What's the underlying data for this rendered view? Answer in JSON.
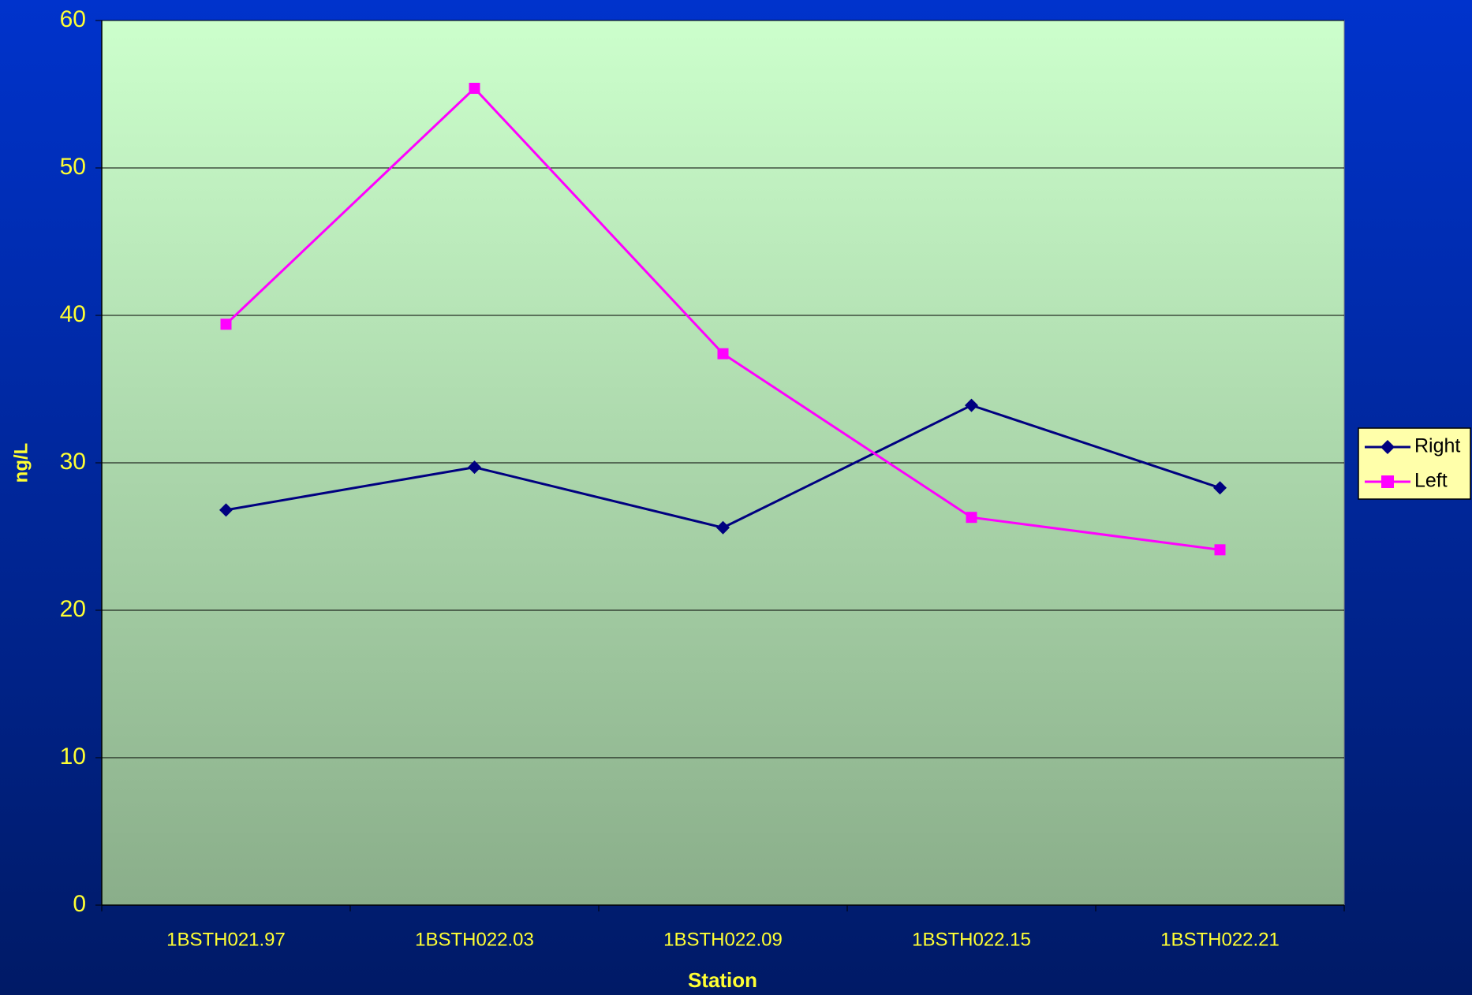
{
  "chart_data": {
    "type": "line",
    "x_label": "Station",
    "y_label": "ng/L",
    "categories": [
      "1BSTH021.97",
      "1BSTH022.03",
      "1BSTH022.09",
      "1BSTH022.15",
      "1BSTH022.21"
    ],
    "series": [
      {
        "name": "Right",
        "color": "#000080",
        "marker": "diamond",
        "values": [
          26.8,
          29.7,
          25.6,
          33.9,
          28.3
        ]
      },
      {
        "name": "Left",
        "color": "#ff00ff",
        "marker": "square",
        "values": [
          39.4,
          55.4,
          37.4,
          26.3,
          24.1
        ]
      }
    ],
    "ylim": [
      0,
      60
    ],
    "yticks": [
      0,
      10,
      20,
      30,
      40,
      50,
      60
    ],
    "grid": true,
    "legend": "right"
  }
}
